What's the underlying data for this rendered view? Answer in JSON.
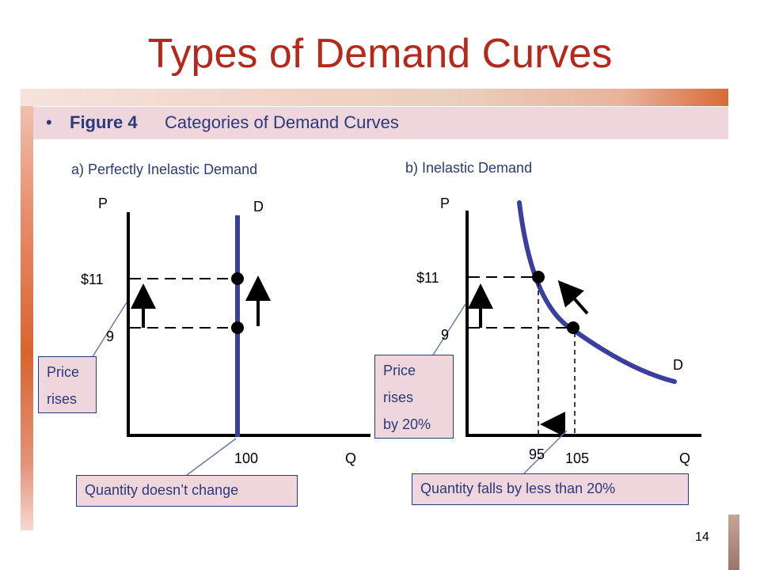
{
  "slide": {
    "title": "Types of Demand Curves",
    "bullet": "•",
    "figure_label": "Figure 4",
    "figure_text": "Categories of Demand Curves",
    "page_number": "14"
  },
  "colors": {
    "title": "#b5281c",
    "text": "#2a3a7a",
    "curve": "#3a3e9e",
    "note_bg": "#efd6dd"
  },
  "chart_data": [
    {
      "type": "line",
      "title": "a) Perfectly Inelastic Demand",
      "xlabel": "Q",
      "ylabel": "P",
      "curve_label": "D",
      "y_ticks": [
        "$11",
        "9"
      ],
      "x_ticks": [
        "100"
      ],
      "points": [
        {
          "q": 100,
          "p": 11
        },
        {
          "q": 100,
          "p": 9
        }
      ],
      "notes": {
        "price": [
          "Price",
          "rises"
        ],
        "quantity": "Quantity doesn’t change"
      }
    },
    {
      "type": "line",
      "title": "b) Inelastic Demand",
      "xlabel": "Q",
      "ylabel": "P",
      "curve_label": "D",
      "y_ticks": [
        "$11",
        "9"
      ],
      "x_ticks": [
        "95",
        "105"
      ],
      "points": [
        {
          "q": 95,
          "p": 11
        },
        {
          "q": 105,
          "p": 9
        }
      ],
      "notes": {
        "price": [
          "Price",
          "rises",
          "by 20%"
        ],
        "quantity": "Quantity falls by less than 20%"
      }
    }
  ]
}
